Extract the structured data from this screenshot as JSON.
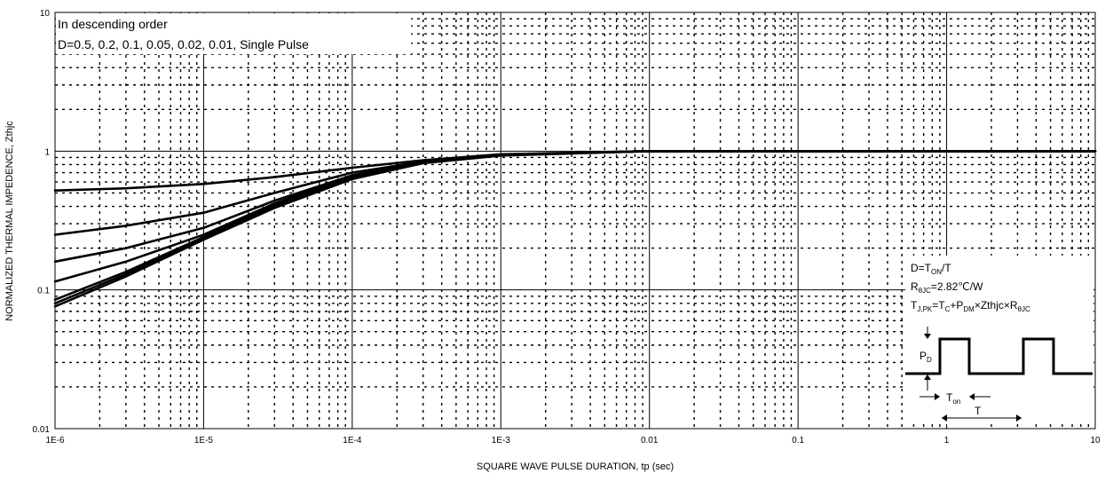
{
  "chart_data": {
    "type": "line",
    "title": "",
    "xlabel": "SQUARE WAVE PULSE DURATION,  tp (sec)",
    "ylabel": "NORMALIZED THERMAL IMPEDENCE,  Zthjc",
    "x_scale": "log",
    "y_scale": "log",
    "xlim": [
      1e-06,
      10
    ],
    "ylim": [
      0.01,
      10
    ],
    "x_ticks": [
      1e-06,
      1e-05,
      0.0001,
      0.001,
      0.01,
      0.1,
      1,
      10
    ],
    "x_tick_labels": [
      "1E-6",
      "1E-5",
      "1E-4",
      "1E-3",
      "0.01",
      "0.1",
      "1",
      "10"
    ],
    "y_ticks": [
      0.01,
      0.1,
      1,
      10
    ],
    "y_tick_labels": [
      "0.01",
      "0.1",
      "1",
      "10"
    ],
    "grid": true,
    "grid_minor_style": "dashed",
    "line_color": "#000000",
    "annotations": [
      "In descending order",
      "D=0.5, 0.2, 0.1, 0.05, 0.02, 0.01, Single Pulse"
    ],
    "series": [
      {
        "x": [
          1e-06,
          3e-06,
          1e-05,
          3e-05,
          0.0001,
          0.0003,
          0.001,
          0.01,
          10
        ],
        "y": [
          0.52,
          0.54,
          0.58,
          0.65,
          0.76,
          0.86,
          0.95,
          1.0,
          1.0
        ]
      },
      {
        "x": [
          1e-06,
          3e-06,
          1e-05,
          3e-05,
          0.0001,
          0.0003,
          0.001,
          0.01,
          10
        ],
        "y": [
          0.25,
          0.29,
          0.36,
          0.5,
          0.7,
          0.84,
          0.94,
          1.0,
          1.0
        ]
      },
      {
        "x": [
          1e-06,
          3e-06,
          1e-05,
          3e-05,
          0.0001,
          0.0003,
          0.001,
          0.01,
          10
        ],
        "y": [
          0.16,
          0.2,
          0.28,
          0.44,
          0.67,
          0.84,
          0.94,
          1.0,
          1.0
        ]
      },
      {
        "x": [
          1e-06,
          3e-06,
          1e-05,
          3e-05,
          0.0001,
          0.0003,
          0.001,
          0.01,
          10
        ],
        "y": [
          0.115,
          0.16,
          0.25,
          0.42,
          0.66,
          0.83,
          0.94,
          1.0,
          1.0
        ]
      },
      {
        "x": [
          1e-06,
          3e-06,
          1e-05,
          3e-05,
          0.0001,
          0.0003,
          0.001,
          0.01,
          10
        ],
        "y": [
          0.085,
          0.135,
          0.24,
          0.41,
          0.65,
          0.83,
          0.94,
          1.0,
          1.0
        ]
      },
      {
        "x": [
          1e-06,
          3e-06,
          1e-05,
          3e-05,
          0.0001,
          0.0003,
          0.001,
          0.01,
          10
        ],
        "y": [
          0.08,
          0.13,
          0.235,
          0.4,
          0.64,
          0.82,
          0.94,
          1.0,
          1.0
        ]
      },
      {
        "x": [
          1e-06,
          3e-06,
          1e-05,
          3e-05,
          0.0001,
          0.0003,
          0.001,
          0.01,
          10
        ],
        "y": [
          0.076,
          0.125,
          0.23,
          0.39,
          0.63,
          0.82,
          0.93,
          1.0,
          1.0
        ]
      }
    ],
    "inset": {
      "formula_1": {
        "a": "D=T",
        "a_sub": "ON",
        "b": "/T"
      },
      "formula_2": {
        "a": "R",
        "a_sub": "θJC",
        "b": "=2.82℃/W"
      },
      "formula_3": {
        "a": "T",
        "a_sub": "J,PK",
        "b": "=T",
        "b_sub": "C",
        "c": "+P",
        "c_sub": "DM",
        "d": "×Zthjc×R",
        "d_sub": "θJC"
      },
      "pd_label": "P",
      "pd_sub": "D",
      "ton_label": "T",
      "ton_sub": "on",
      "t_label": "T"
    }
  }
}
